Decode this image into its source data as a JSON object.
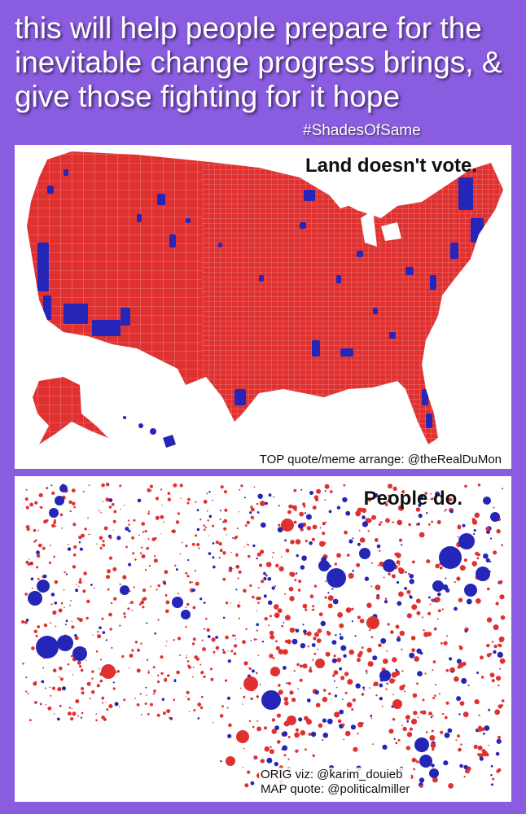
{
  "header": {
    "headline": "this will help people prepare for the inevitable change progress brings, & give those fighting for it hope",
    "hashtag": "#ShadesOfSame"
  },
  "top_panel": {
    "quote": "Land doesn't vote.",
    "credit": "TOP quote/meme arrange: @theRealDuMon"
  },
  "bottom_panel": {
    "quote": "People do.",
    "credit_line1": "ORIG viz: @karim_douieb",
    "credit_line2": "MAP quote: @politicalmiller"
  },
  "colors": {
    "background": "#8a5ce0",
    "republican_red": "#e03131",
    "democrat_blue": "#2525b8",
    "county_border": "#f3b0b0"
  }
}
